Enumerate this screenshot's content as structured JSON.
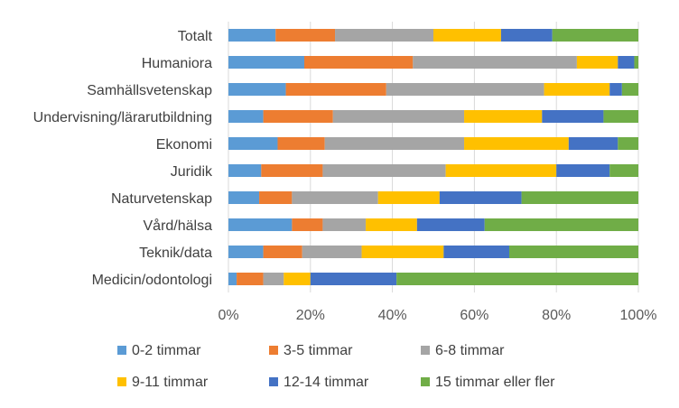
{
  "chart_data": {
    "type": "bar",
    "orientation": "horizontal",
    "stacked": "percent",
    "title": "",
    "xlabel": "",
    "ylabel": "",
    "xlim": [
      0,
      100
    ],
    "x_ticks": [
      "0%",
      "20%",
      "40%",
      "60%",
      "80%",
      "100%"
    ],
    "grid": true,
    "legend_position": "bottom",
    "categories": [
      "Totalt",
      "Humaniora",
      "Samhällsvetenskap",
      "Undervisning/lärarutbildning",
      "Ekonomi",
      "Juridik",
      "Naturvetenskap",
      "Vård/hälsa",
      "Teknik/data",
      "Medicin/odontologi"
    ],
    "series": [
      {
        "name": "0-2 timmar",
        "color": "#5B9BD5",
        "values": [
          11.5,
          18.5,
          14,
          8.5,
          12,
          8,
          7.5,
          15.5,
          8.5,
          2
        ]
      },
      {
        "name": "3-5 timmar",
        "color": "#ED7D31",
        "values": [
          14.5,
          26.5,
          24.5,
          17,
          11.5,
          15,
          8,
          7.5,
          9.5,
          6.5
        ]
      },
      {
        "name": "6-8 timmar",
        "color": "#A5A5A5",
        "values": [
          24,
          40,
          38.5,
          32,
          34,
          30,
          21,
          10.5,
          14.5,
          5
        ]
      },
      {
        "name": "9-11 timmar",
        "color": "#FFC000",
        "values": [
          16.5,
          10,
          16,
          19,
          25.5,
          27,
          15,
          12.5,
          20,
          6.5
        ]
      },
      {
        "name": "12-14 timmar",
        "color": "#4472C4",
        "values": [
          12.5,
          4,
          3,
          15,
          12,
          13,
          20,
          16.5,
          16,
          21
        ]
      },
      {
        "name": "15 timmar eller fler",
        "color": "#70AD47",
        "values": [
          21,
          1,
          4,
          8.5,
          5,
          7,
          28.5,
          37.5,
          31.5,
          59
        ]
      }
    ]
  }
}
